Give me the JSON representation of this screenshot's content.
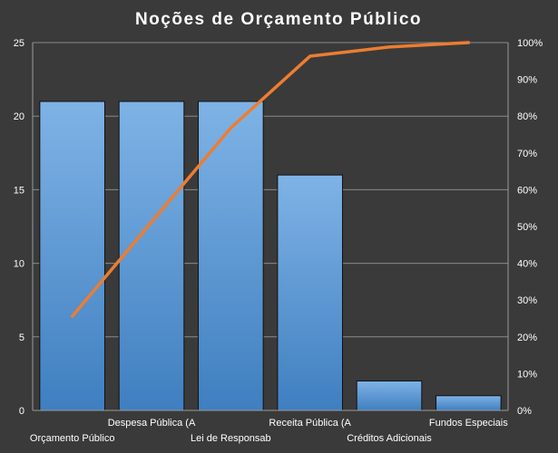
{
  "chart_data": {
    "type": "bar",
    "title": "Noções de Orçamento Público",
    "categories": [
      "Orçamento Público",
      "Despesa Pública (A",
      "Lei de Responsab",
      "Receita Pública (A",
      "Créditos Adicionais",
      "Fundos Especiais"
    ],
    "series": [
      {
        "values": [
          21,
          21,
          21,
          16,
          2,
          1
        ]
      },
      {
        "values": [
          25.6,
          51.2,
          76.8,
          96.3,
          98.8,
          100
        ]
      }
    ],
    "y_ticks": [
      "0",
      "5",
      "10",
      "15",
      "20",
      "25"
    ],
    "y2_ticks": [
      "0%",
      "10%",
      "20%",
      "30%",
      "40%",
      "50%",
      "60%",
      "70%",
      "80%",
      "90%",
      "100%"
    ],
    "ylim": [
      0,
      25
    ],
    "y2lim": [
      0,
      100
    ],
    "grid": true,
    "legend": "none",
    "colors": {
      "background": "#3a3a3a",
      "bar": "#5b9bd5",
      "bar_top": "#7fb3e6",
      "bar_bottom": "#3f7fc0",
      "line": "#ed7d31",
      "grid": "#8a8a8a",
      "text": "#ffffff"
    }
  }
}
